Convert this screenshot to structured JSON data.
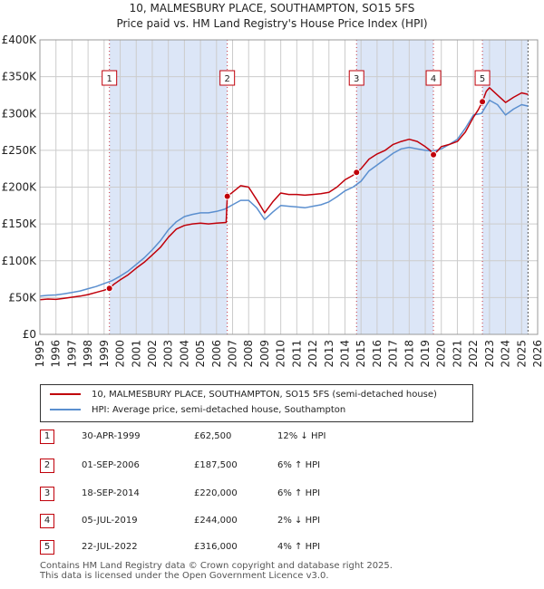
{
  "chart_data": {
    "type": "line",
    "title": "10, MALMESBURY PLACE, SOUTHAMPTON, SO15 5FS",
    "subtitle": "Price paid vs. HM Land Registry's House Price Index (HPI)",
    "xlabel": "",
    "ylabel": "",
    "xlim": [
      1995,
      2026
    ],
    "ylim": [
      0,
      400000
    ],
    "x_ticks": [
      1995,
      1996,
      1997,
      1998,
      1999,
      2000,
      2001,
      2002,
      2003,
      2004,
      2005,
      2006,
      2007,
      2008,
      2009,
      2010,
      2011,
      2012,
      2013,
      2014,
      2015,
      2016,
      2017,
      2018,
      2019,
      2020,
      2021,
      2022,
      2023,
      2024,
      2025,
      2026
    ],
    "y_ticks": [
      {
        "value": 0,
        "label": "£0"
      },
      {
        "value": 50000,
        "label": "£50K"
      },
      {
        "value": 100000,
        "label": "£100K"
      },
      {
        "value": 150000,
        "label": "£150K"
      },
      {
        "value": 200000,
        "label": "£200K"
      },
      {
        "value": 250000,
        "label": "£250K"
      },
      {
        "value": 300000,
        "label": "£300K"
      },
      {
        "value": 350000,
        "label": "£350K"
      },
      {
        "value": 400000,
        "label": "£400K"
      }
    ],
    "grid": true,
    "legend_position": "below",
    "series": [
      {
        "name": "10, MALMESBURY PLACE, SOUTHAMPTON, SO15 5FS (semi-detached house)",
        "color": "#c0000a",
        "x": [
          1995.0,
          1995.5,
          1996.0,
          1996.5,
          1997.0,
          1997.5,
          1998.0,
          1998.5,
          1999.0,
          1999.33,
          1999.6,
          2000.0,
          2000.5,
          2001.0,
          2001.5,
          2002.0,
          2002.5,
          2003.0,
          2003.5,
          2004.0,
          2004.5,
          2005.0,
          2005.5,
          2006.0,
          2006.6,
          2006.67,
          2007.0,
          2007.5,
          2008.0,
          2008.5,
          2009.0,
          2009.5,
          2010.0,
          2010.5,
          2011.0,
          2011.5,
          2012.0,
          2012.5,
          2013.0,
          2013.5,
          2014.0,
          2014.5,
          2014.72,
          2015.0,
          2015.5,
          2016.0,
          2016.5,
          2017.0,
          2017.5,
          2018.0,
          2018.5,
          2019.0,
          2019.3,
          2019.51,
          2019.8,
          2020.0,
          2020.5,
          2021.0,
          2021.5,
          2022.0,
          2022.3,
          2022.56,
          2022.8,
          2023.0,
          2023.5,
          2024.0,
          2024.5,
          2025.0,
          2025.4
        ],
        "values": [
          47000,
          48000,
          47500,
          49000,
          50500,
          52000,
          54000,
          57000,
          60000,
          62500,
          68000,
          74000,
          81000,
          90000,
          98000,
          108000,
          118000,
          132000,
          143000,
          148000,
          150000,
          151000,
          150000,
          151000,
          152000,
          187500,
          193000,
          202000,
          200000,
          183000,
          165000,
          180000,
          192000,
          190000,
          190000,
          189000,
          190000,
          191000,
          193000,
          200000,
          210000,
          216000,
          220000,
          225000,
          238000,
          245000,
          250000,
          258000,
          262000,
          265000,
          262000,
          255000,
          250000,
          244000,
          250000,
          255000,
          258000,
          262000,
          275000,
          295000,
          305000,
          316000,
          330000,
          335000,
          325000,
          315000,
          322000,
          328000,
          326000
        ]
      },
      {
        "name": "HPI: Average price, semi-detached house, Southampton",
        "color": "#5b8fcf",
        "x": [
          1995.0,
          1995.5,
          1996.0,
          1996.5,
          1997.0,
          1997.5,
          1998.0,
          1998.5,
          1999.0,
          1999.5,
          2000.0,
          2000.5,
          2001.0,
          2001.5,
          2002.0,
          2002.5,
          2003.0,
          2003.5,
          2004.0,
          2004.5,
          2005.0,
          2005.5,
          2006.0,
          2006.5,
          2007.0,
          2007.5,
          2008.0,
          2008.5,
          2009.0,
          2009.5,
          2010.0,
          2010.5,
          2011.0,
          2011.5,
          2012.0,
          2012.5,
          2013.0,
          2013.5,
          2014.0,
          2014.5,
          2015.0,
          2015.5,
          2016.0,
          2016.5,
          2017.0,
          2017.5,
          2018.0,
          2018.5,
          2019.0,
          2019.5,
          2020.0,
          2020.5,
          2021.0,
          2021.5,
          2022.0,
          2022.5,
          2023.0,
          2023.5,
          2024.0,
          2024.5,
          2025.0,
          2025.4
        ],
        "values": [
          52000,
          53000,
          53500,
          55000,
          57000,
          59000,
          62000,
          65000,
          69000,
          73000,
          79000,
          86000,
          95000,
          104000,
          115000,
          127000,
          142000,
          153000,
          160000,
          163000,
          165000,
          165000,
          167000,
          170000,
          176000,
          182000,
          182000,
          172000,
          156000,
          166000,
          175000,
          174000,
          173000,
          172000,
          174000,
          176000,
          180000,
          187000,
          195000,
          200000,
          208000,
          222000,
          230000,
          238000,
          246000,
          252000,
          254000,
          252000,
          250000,
          249000,
          252000,
          258000,
          265000,
          280000,
          298000,
          300000,
          318000,
          312000,
          298000,
          306000,
          312000,
          310000
        ]
      }
    ],
    "transactions": [
      {
        "id": "1",
        "date": "30-APR-1999",
        "x": 1999.33,
        "price": 62500,
        "price_label": "£62,500",
        "hpi": "12% ↓ HPI"
      },
      {
        "id": "2",
        "date": "01-SEP-2006",
        "x": 2006.67,
        "price": 187500,
        "price_label": "£187,500",
        "hpi": "6% ↑ HPI"
      },
      {
        "id": "3",
        "date": "18-SEP-2014",
        "x": 2014.72,
        "price": 220000,
        "price_label": "£220,000",
        "hpi": "6% ↑ HPI"
      },
      {
        "id": "4",
        "date": "05-JUL-2019",
        "x": 2019.51,
        "price": 244000,
        "price_label": "£244,000",
        "hpi": "2% ↓ HPI"
      },
      {
        "id": "5",
        "date": "22-JUL-2022",
        "x": 2022.56,
        "price": 316000,
        "price_label": "£316,000",
        "hpi": "4% ↑ HPI"
      }
    ],
    "shaded_periods": [
      [
        1999.33,
        2006.67
      ],
      [
        2014.72,
        2019.51
      ],
      [
        2022.56,
        2025.4
      ]
    ],
    "colors": {
      "price": "#c0000a",
      "hpi": "#5b8fcf",
      "shade": "#dce6f7",
      "grid": "#cccccc"
    }
  },
  "legend": {
    "price_label": "10, MALMESBURY PLACE, SOUTHAMPTON, SO15 5FS (semi-detached house)",
    "hpi_label": "HPI: Average price, semi-detached house, Southampton"
  },
  "footer": {
    "line1": "Contains HM Land Registry data © Crown copyright and database right 2025.",
    "line2": "This data is licensed under the Open Government Licence v3.0."
  }
}
